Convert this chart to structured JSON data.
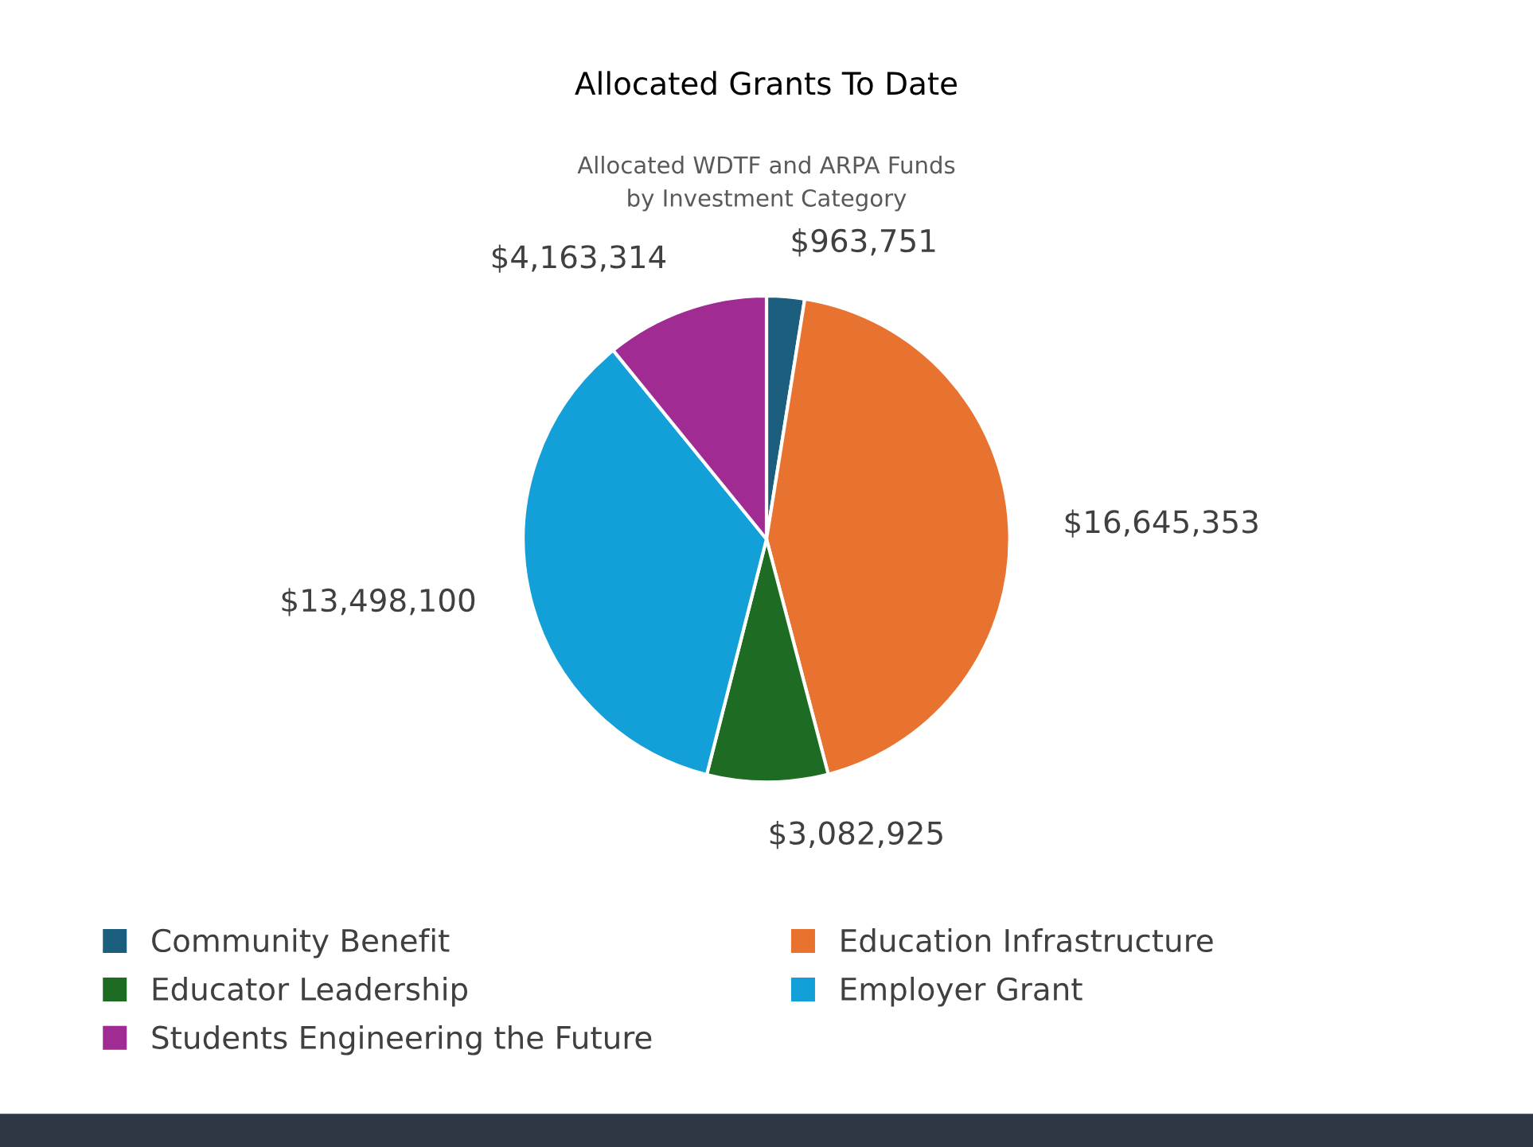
{
  "chart_data": {
    "type": "pie",
    "title": "Allocated Grants To Date",
    "subtitle": "Allocated WDTF and ARPA Funds\nby Investment Category",
    "categories": [
      "Community Benefit",
      "Education Infrastructure",
      "Educator Leadership",
      "Employer Grant",
      "Students Engineering the Future"
    ],
    "values": [
      963751,
      16645353,
      3082925,
      13498100,
      4163314
    ],
    "value_labels": [
      "$963,751",
      "$16,645,353",
      "$3,082,925",
      "$13,498,100",
      "$4,163,314"
    ],
    "colors": [
      "#1b5e7e",
      "#e8722f",
      "#1e6b24",
      "#139fd8",
      "#a02b93"
    ],
    "legend": "bottom"
  }
}
